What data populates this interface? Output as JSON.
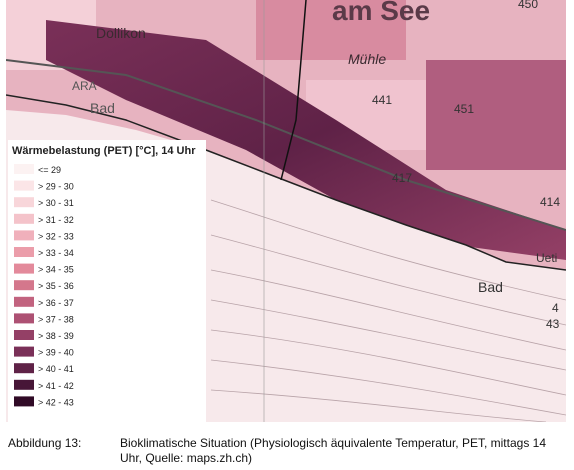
{
  "map": {
    "labels": [
      "am See",
      "Dollikon",
      "Mühle",
      "ARA",
      "Bad",
      "Bad",
      "441",
      "451",
      "417",
      "414",
      "450",
      "43",
      "Ueti",
      "4"
    ]
  },
  "legend": {
    "title": "Wärmebelastung (PET) [°C], 14 Uhr",
    "items": [
      {
        "label": "<= 29",
        "color": "#fcf2f2"
      },
      {
        "label": "> 29 - 30",
        "color": "#fbe5e7"
      },
      {
        "label": "> 30 - 31",
        "color": "#f8d6da"
      },
      {
        "label": "> 31 - 32",
        "color": "#f4c3ca"
      },
      {
        "label": "> 32 - 33",
        "color": "#f0b0bb"
      },
      {
        "label": "> 33 - 34",
        "color": "#eb9daa"
      },
      {
        "label": "> 34 - 35",
        "color": "#e38a9b"
      },
      {
        "label": "> 35 - 36",
        "color": "#d4778c"
      },
      {
        "label": "> 36 - 37",
        "color": "#c2637f"
      },
      {
        "label": "> 37 - 38",
        "color": "#ad5173"
      },
      {
        "label": "> 38 - 39",
        "color": "#944066"
      },
      {
        "label": "> 39 - 40",
        "color": "#7a3058"
      },
      {
        "label": "> 40 - 41",
        "color": "#5f2247"
      },
      {
        "label": "> 41 - 42",
        "color": "#471637"
      },
      {
        "label": "> 42 - 43",
        "color": "#300a26"
      }
    ]
  },
  "caption": {
    "number": "Abbildung 13:",
    "text": "Bioklimatische Situation (Physiologisch äquivalente Temperatur, PET, mittags 14 Uhr, Quelle: maps.zh.ch)"
  }
}
